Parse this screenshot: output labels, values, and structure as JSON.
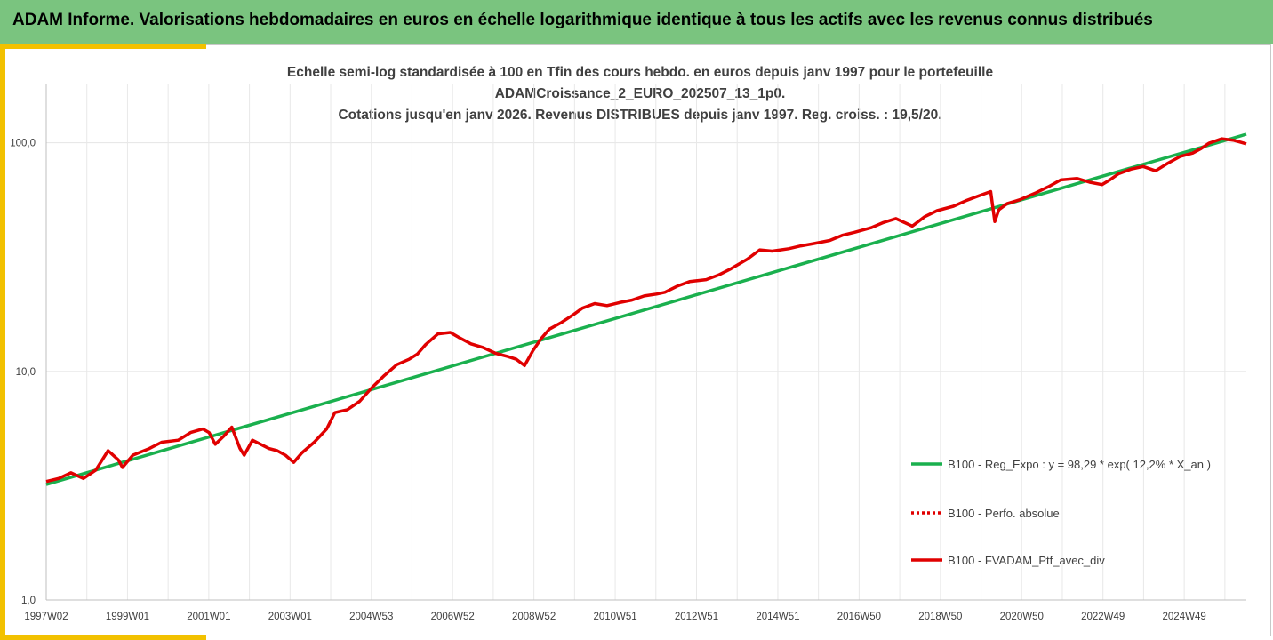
{
  "header": {
    "title": "ADAM Informe. Valorisations hebdomadaires en euros en échelle logarithmique identique à tous les actifs avec les revenus connus distribués"
  },
  "chart_data": {
    "type": "line",
    "title_lines": [
      "Echelle semi-log standardisée à 100 en Tfin des cours hebdo.  en euros depuis janv 1997 pour le portefeuille",
      "ADAMCroissance_2_EURO_202507_13_1p0.",
      "Cotations  jusqu'en janv 2026. Revenus DISTRIBUES depuis janv 1997. Reg. croiss. : 19,5/20."
    ],
    "y_scale": "log",
    "ylim": [
      1,
      180
    ],
    "y_ticks": [
      "1,0",
      "10,0",
      "100,0"
    ],
    "x_ticks": [
      "1997W02",
      "1999W01",
      "2001W01",
      "2003W01",
      "2004W53",
      "2006W52",
      "2008W52",
      "2010W51",
      "2012W51",
      "2014W51",
      "2016W50",
      "2018W50",
      "2020W50",
      "2022W49",
      "2024W49"
    ],
    "x_range": [
      1997.0,
      2026.1
    ],
    "grid": "vertical",
    "legend_position": "right",
    "series": [
      {
        "name": "B100 - Reg_Expo : y = 98,29 * exp( 12,2% *  X_an )",
        "color": "#1ab04e",
        "style": "solid",
        "x": [
          1997.0,
          2026.1
        ],
        "values": [
          3.2,
          109
        ]
      },
      {
        "name": "B100 - Perfo. absolue",
        "color": "#e00000",
        "style": "dotted",
        "x": [],
        "values": []
      },
      {
        "name": "B100 - FVADAM_Ptf_avec_div",
        "color": "#e00000",
        "style": "solid",
        "x": [
          1997.0,
          1997.3,
          1997.6,
          1997.9,
          1998.2,
          1998.5,
          1998.75,
          1998.85,
          1999.1,
          1999.5,
          1999.8,
          2000.2,
          2000.5,
          2000.8,
          2000.95,
          2001.1,
          2001.3,
          2001.5,
          2001.7,
          2001.8,
          2002.0,
          2002.2,
          2002.4,
          2002.6,
          2002.8,
          2003.0,
          2003.2,
          2003.5,
          2003.8,
          2004.0,
          2004.3,
          2004.6,
          2004.9,
          2005.2,
          2005.5,
          2005.8,
          2006.0,
          2006.2,
          2006.5,
          2006.8,
          2007.0,
          2007.3,
          2007.6,
          2007.9,
          2008.2,
          2008.4,
          2008.6,
          2008.8,
          2009.0,
          2009.2,
          2009.5,
          2009.8,
          2010.0,
          2010.3,
          2010.6,
          2010.9,
          2011.2,
          2011.5,
          2011.8,
          2012.0,
          2012.3,
          2012.6,
          2013.0,
          2013.3,
          2013.6,
          2014.0,
          2014.3,
          2014.6,
          2015.0,
          2015.3,
          2015.6,
          2016.0,
          2016.3,
          2016.6,
          2017.0,
          2017.3,
          2017.6,
          2018.0,
          2018.3,
          2018.6,
          2019.0,
          2019.3,
          2019.6,
          2019.9,
          2020.0,
          2020.1,
          2020.3,
          2020.6,
          2021.0,
          2021.3,
          2021.6,
          2022.0,
          2022.3,
          2022.6,
          2022.8,
          2023.0,
          2023.3,
          2023.6,
          2023.9,
          2024.2,
          2024.5,
          2024.8,
          2025.0,
          2025.2,
          2025.5,
          2025.8,
          2026.1
        ],
        "values": [
          3.3,
          3.4,
          3.6,
          3.4,
          3.7,
          4.5,
          4.1,
          3.8,
          4.3,
          4.6,
          4.9,
          5.0,
          5.4,
          5.6,
          5.4,
          4.8,
          5.2,
          5.7,
          4.6,
          4.3,
          5.0,
          4.8,
          4.6,
          4.5,
          4.3,
          4.0,
          4.4,
          4.9,
          5.6,
          6.6,
          6.8,
          7.4,
          8.5,
          9.6,
          10.7,
          11.3,
          11.9,
          13.1,
          14.6,
          14.8,
          14.1,
          13.2,
          12.7,
          12.0,
          11.6,
          11.3,
          10.6,
          12.3,
          13.9,
          15.3,
          16.4,
          17.8,
          18.9,
          19.8,
          19.4,
          20.0,
          20.5,
          21.4,
          21.8,
          22.2,
          23.6,
          24.7,
          25.2,
          26.4,
          28.1,
          31.0,
          34.0,
          33.6,
          34.4,
          35.4,
          36.2,
          37.4,
          39.4,
          40.6,
          42.5,
          44.8,
          46.6,
          43.2,
          47.5,
          50.5,
          52.8,
          55.8,
          58.5,
          61.2,
          45.2,
          51.0,
          54.2,
          56.3,
          60.5,
          64.2,
          68.8,
          69.8,
          67.2,
          65.6,
          69.0,
          73.2,
          76.7,
          78.8,
          75.4,
          81.5,
          87.2,
          90.2,
          94.3,
          99.7,
          104.2,
          102.5,
          99.0
        ]
      }
    ]
  }
}
